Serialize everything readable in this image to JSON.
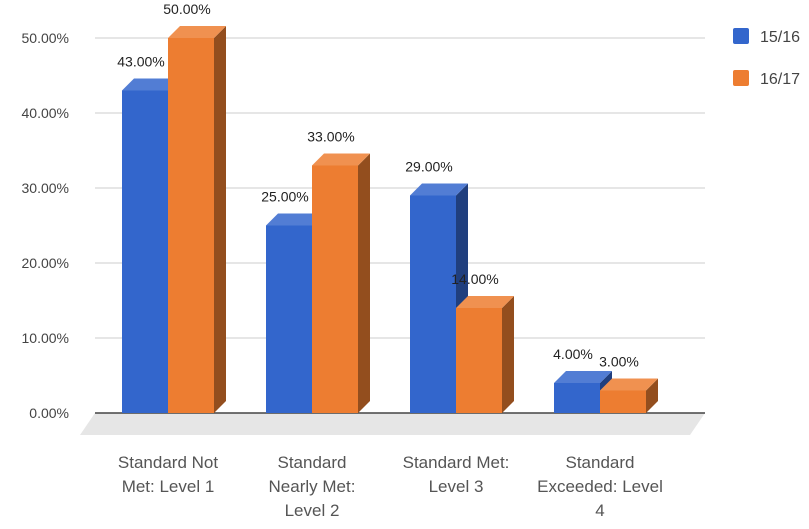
{
  "chart_data": {
    "type": "bar",
    "categories": [
      [
        "Standard Not",
        "Met: Level 1"
      ],
      [
        "Standard",
        "Nearly Met:",
        "Level 2"
      ],
      [
        "Standard Met:",
        "Level 3"
      ],
      [
        "Standard",
        "Exceeded: Level",
        "4"
      ]
    ],
    "series": [
      {
        "name": "15/16",
        "color": "#3366cc",
        "values": [
          43,
          25,
          29,
          4
        ],
        "labels": [
          "43.00%",
          "25.00%",
          "29.00%",
          "4.00%"
        ]
      },
      {
        "name": "16/17",
        "color": "#ed7d31",
        "values": [
          50,
          33,
          14,
          3
        ],
        "labels": [
          "50.00%",
          "33.00%",
          "14.00%",
          "3.00%"
        ]
      }
    ],
    "y_ticks": [
      "0.00%",
      "10.00%",
      "20.00%",
      "30.00%",
      "40.00%",
      "50.00%"
    ],
    "ylim": [
      0,
      50
    ],
    "title": "",
    "xlabel": "",
    "ylabel": "",
    "grid": true,
    "legend": "right",
    "style": "3d"
  }
}
